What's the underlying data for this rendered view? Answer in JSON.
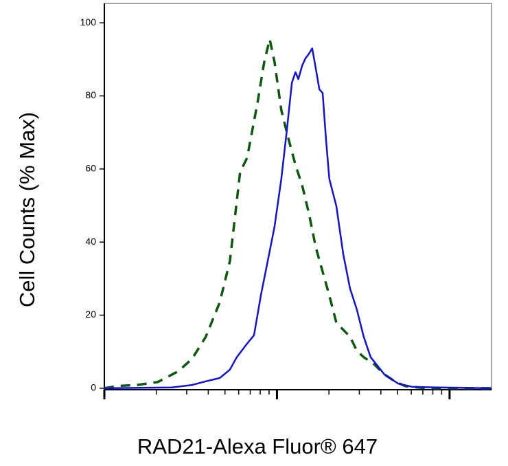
{
  "chart_data": {
    "type": "line",
    "x_label": "RAD21-Alexa Fluor® 647",
    "y_label": "Cell Counts (% Max)",
    "xscale": "log",
    "xlim": [
      1,
      175
    ],
    "ylim": [
      -0.4,
      105.3
    ],
    "xticks": [
      1,
      2,
      3,
      4,
      5,
      6,
      7,
      8,
      9,
      10,
      20,
      30,
      40,
      50,
      60,
      70,
      80,
      90,
      100
    ],
    "yticks": [
      0,
      20,
      40,
      60,
      80,
      100
    ],
    "series": [
      {
        "color": "#0b5a0b",
        "dash": true,
        "x": [
          1,
          1.18,
          1.55,
          2.04,
          2.69,
          3.23,
          3.87,
          4.66,
          5.34,
          6.12,
          6.71,
          7.71,
          8.44,
          9.08,
          9.68,
          10.6,
          11.6,
          12.8,
          14.0,
          15.3,
          16.8,
          18.4,
          20.1,
          22.1,
          24.2,
          26.5,
          29.0,
          31.8,
          36.5,
          41.9,
          48.1,
          55.2,
          72.6,
          105,
          175
        ],
        "values": [
          0,
          0.6,
          0.9,
          1.7,
          4.7,
          8.1,
          14.1,
          23.5,
          34.8,
          59.2,
          63.0,
          78.0,
          89.3,
          95.5,
          89.3,
          76.1,
          68.6,
          61.1,
          55.5,
          47.9,
          38.5,
          31.9,
          25.4,
          17.9,
          16.0,
          14.1,
          10.3,
          8.5,
          6.6,
          3.8,
          1.9,
          0.6,
          0,
          0,
          0
        ]
      },
      {
        "color": "#1010e0",
        "dash": false,
        "x": [
          1,
          2.45,
          3.23,
          3.87,
          4.66,
          5.34,
          5.85,
          6.71,
          7.36,
          8.07,
          8.84,
          9.68,
          10.6,
          11.4,
          12.2,
          12.8,
          13.3,
          14.0,
          14.6,
          15.3,
          16.0,
          16.8,
          17.6,
          18.4,
          19.2,
          20.1,
          22.1,
          24.2,
          26.5,
          29.0,
          31.8,
          34.9,
          41.9,
          50.3,
          60.4,
          87.1,
          175
        ],
        "values": [
          0,
          0.2,
          0.9,
          1.9,
          2.8,
          5.1,
          8.5,
          12.2,
          14.5,
          25.4,
          34.8,
          44.2,
          57.3,
          70.5,
          83.6,
          86.5,
          84.6,
          88.3,
          90.2,
          91.5,
          93.0,
          87.4,
          81.8,
          80.8,
          68.6,
          57.3,
          49.8,
          36.7,
          27.3,
          21.6,
          14.1,
          8.5,
          3.8,
          1.3,
          0.4,
          0.2,
          0
        ]
      }
    ]
  }
}
